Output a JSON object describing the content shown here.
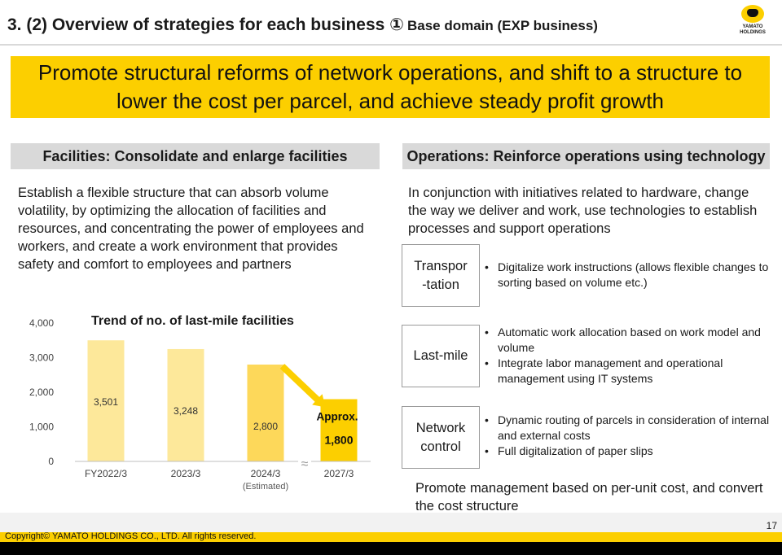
{
  "header": {
    "title_main": "3. (2) Overview of strategies for each business ①",
    "title_sub": "Base domain (EXP business)",
    "logo_line1": "YAMATO",
    "logo_line2": "HOLDINGS"
  },
  "banner": {
    "text": "Promote structural reforms of network operations, and shift to a structure to lower the cost per parcel, and achieve steady profit growth"
  },
  "facilities": {
    "heading": "Facilities: Consolidate and enlarge facilities",
    "description": "Establish a flexible structure that can absorb volume volatility, by optimizing the allocation of facilities and resources, and concentrating the power of employees and workers, and create a work environment that provides safety and comfort to employees and partners"
  },
  "chart_data": {
    "type": "bar",
    "title": "Trend of no. of last-mile facilities",
    "categories": [
      "FY2022/3",
      "2023/3",
      "2024/3",
      "2027/3"
    ],
    "category_notes": [
      "",
      "",
      "(Estimated)",
      ""
    ],
    "values": [
      3501,
      3248,
      2800,
      1800
    ],
    "value_labels": [
      "3,501",
      "3,248",
      "2,800",
      "1,800"
    ],
    "value_prefix_last": "Approx.",
    "yticks": [
      "0",
      "1,000",
      "2,000",
      "3,000",
      "4,000"
    ],
    "ylim": [
      0,
      4000
    ],
    "bar_colors": [
      "#fde89a",
      "#fde89a",
      "#fdd85a",
      "#fccf00"
    ],
    "axis_break": "≈",
    "grid": false
  },
  "operations": {
    "heading": "Operations: Reinforce operations using technology",
    "description": "In conjunction with initiatives related to hardware, change the way we deliver and work, use technologies to establish processes and support operations",
    "items": [
      {
        "label": "Transpor\n-tation",
        "bullets": [
          "Digitalize work instructions (allows flexible changes to sorting based on volume etc.)"
        ]
      },
      {
        "label": "Last-mile",
        "bullets": [
          "Automatic work allocation based on work model and volume",
          "Integrate labor management and operational management using IT systems"
        ]
      },
      {
        "label": "Network\ncontrol",
        "bullets": [
          "Dynamic routing of parcels in consideration of internal and external costs",
          "Full digitalization of paper slips"
        ]
      }
    ],
    "footer": "Promote management based on per-unit cost, and convert the cost structure"
  },
  "footer": {
    "page_number": "17",
    "copyright": "Copyright© YAMATO HOLDINGS CO., LTD. All rights reserved."
  }
}
